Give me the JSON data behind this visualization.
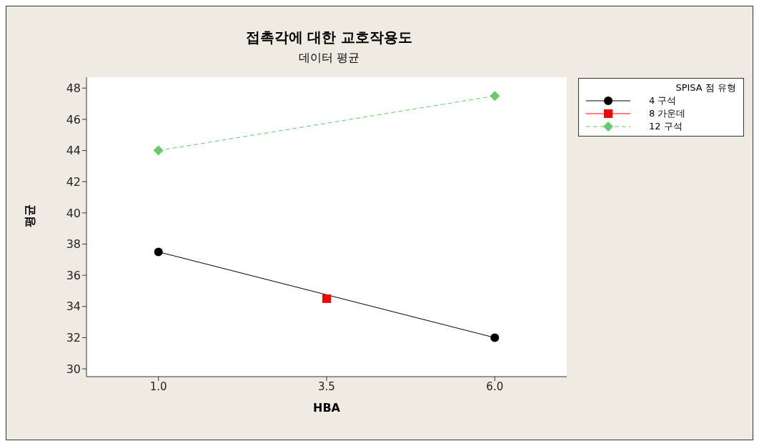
{
  "chart_data": {
    "type": "line",
    "title": "접촉각에 대한 교호작용도",
    "subtitle": "데이터 평균",
    "xlabel": "HBA",
    "ylabel": "평균",
    "legend_title": "SPISA 점 유형",
    "legend": "right",
    "grid": false,
    "xlim": [
      -0.07,
      7.07
    ],
    "xticks": [
      {
        "value": 1,
        "label": "1.0"
      },
      {
        "value": 3.5,
        "label": "3.5"
      },
      {
        "value": 6,
        "label": "6.0"
      }
    ],
    "ylim": [
      29.5,
      48.7
    ],
    "yticks": [
      30,
      32,
      34,
      36,
      38,
      40,
      42,
      44,
      46,
      48
    ],
    "series": [
      {
        "name": "4 구석",
        "color": "#000000",
        "marker": "circle",
        "line_style": "solid",
        "x": [
          1,
          6
        ],
        "values": [
          37.5,
          32
        ]
      },
      {
        "name": "8 가운데",
        "color": "#ff0000",
        "marker": "square",
        "line_style": "solid",
        "x": [
          3.5
        ],
        "values": [
          34.5
        ]
      },
      {
        "name": "12 구석",
        "color": "#66cc66",
        "marker": "diamond",
        "line_style": "dashed",
        "x": [
          1,
          6
        ],
        "values": [
          44,
          47.5
        ]
      }
    ]
  }
}
